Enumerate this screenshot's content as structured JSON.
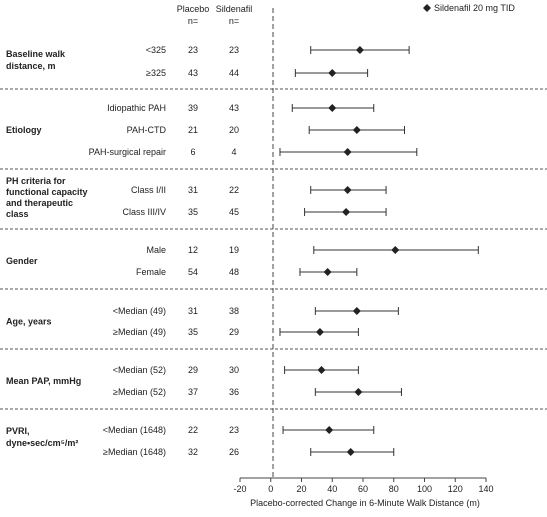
{
  "chart_data": {
    "type": "forest",
    "headers": {
      "placebo": "Placebo",
      "sildenafil": "Sildenafil",
      "n": "n="
    },
    "legend": {
      "label": "Sildenafil 20 mg TID",
      "position": "top-right"
    },
    "xlabel": "Placebo-corrected Change in 6-Minute Walk Distance (m)",
    "xlim": [
      -20,
      140
    ],
    "xticks": [
      "-20",
      "0",
      "20",
      "40",
      "60",
      "80",
      "100",
      "120",
      "140"
    ],
    "reference_line": 0,
    "groups": [
      {
        "label": "Baseline walk distance, m",
        "rows": [
          {
            "label": "<325",
            "placebo_n": "23",
            "sildenafil_n": "23",
            "estimate": 58,
            "lower": 26,
            "upper": 90
          },
          {
            "label": "≥325",
            "placebo_n": "43",
            "sildenafil_n": "44",
            "estimate": 40,
            "lower": 16,
            "upper": 63
          }
        ]
      },
      {
        "label": "Etiology",
        "rows": [
          {
            "label": "Idiopathic PAH",
            "placebo_n": "39",
            "sildenafil_n": "43",
            "estimate": 40,
            "lower": 14,
            "upper": 67
          },
          {
            "label": "PAH-CTD",
            "placebo_n": "21",
            "sildenafil_n": "20",
            "estimate": 56,
            "lower": 25,
            "upper": 87
          },
          {
            "label": "PAH-surgical repair",
            "placebo_n": "6",
            "sildenafil_n": "4",
            "estimate": 50,
            "lower": 6,
            "upper": 95
          }
        ]
      },
      {
        "label": "PH criteria for functional capacity and therapeutic class",
        "rows": [
          {
            "label": "Class I/II",
            "placebo_n": "31",
            "sildenafil_n": "22",
            "estimate": 50,
            "lower": 26,
            "upper": 75
          },
          {
            "label": "Class III/IV",
            "placebo_n": "35",
            "sildenafil_n": "45",
            "estimate": 49,
            "lower": 22,
            "upper": 75
          }
        ]
      },
      {
        "label": "Gender",
        "rows": [
          {
            "label": "Male",
            "placebo_n": "12",
            "sildenafil_n": "19",
            "estimate": 81,
            "lower": 28,
            "upper": 135
          },
          {
            "label": "Female",
            "placebo_n": "54",
            "sildenafil_n": "48",
            "estimate": 37,
            "lower": 19,
            "upper": 56
          }
        ]
      },
      {
        "label": "Age, years",
        "rows": [
          {
            "label": "<Median (49)",
            "placebo_n": "31",
            "sildenafil_n": "38",
            "estimate": 56,
            "lower": 29,
            "upper": 83
          },
          {
            "label": "≥Median (49)",
            "placebo_n": "35",
            "sildenafil_n": "29",
            "estimate": 32,
            "lower": 6,
            "upper": 57
          }
        ]
      },
      {
        "label": "Mean PAP, mmHg",
        "rows": [
          {
            "label": "<Median (52)",
            "placebo_n": "29",
            "sildenafil_n": "30",
            "estimate": 33,
            "lower": 9,
            "upper": 57
          },
          {
            "label": "≥Median (52)",
            "placebo_n": "37",
            "sildenafil_n": "36",
            "estimate": 57,
            "lower": 29,
            "upper": 85
          }
        ]
      },
      {
        "label": "PVRI, dyne•sec/cm⁵/m²",
        "rows": [
          {
            "label": "<Median (1648)",
            "placebo_n": "22",
            "sildenafil_n": "23",
            "estimate": 38,
            "lower": 8,
            "upper": 67
          },
          {
            "label": "≥Median (1648)",
            "placebo_n": "32",
            "sildenafil_n": "26",
            "estimate": 52,
            "lower": 26,
            "upper": 80
          }
        ]
      }
    ]
  }
}
